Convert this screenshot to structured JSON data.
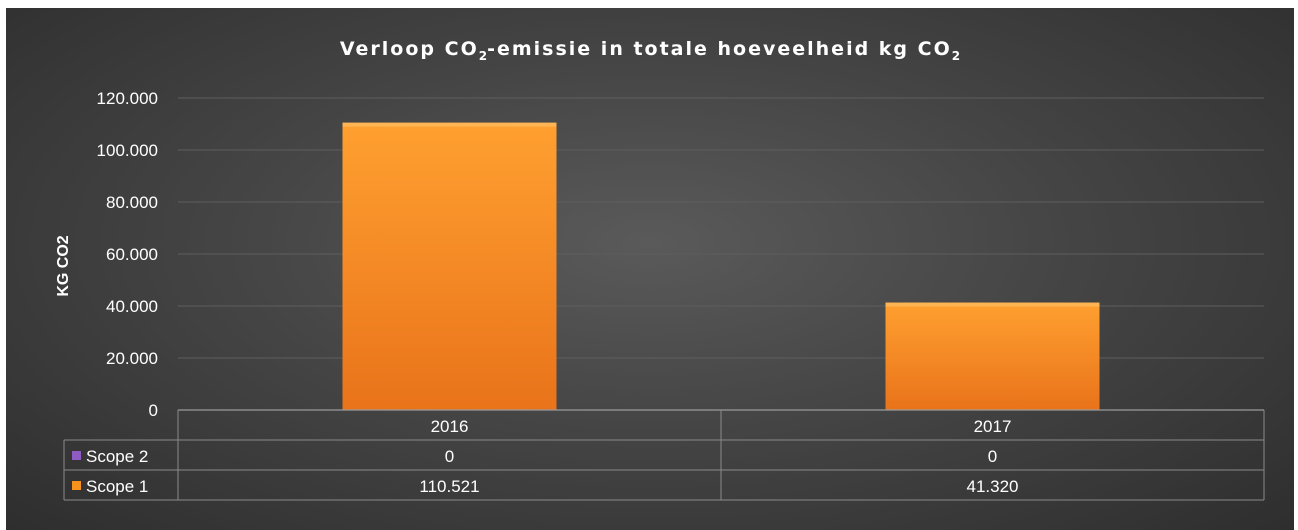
{
  "title": {
    "main": "Verloop CO",
    "sub1": "2",
    "mid": "-emissie in totale hoeveelheid kg CO",
    "sub2": "2"
  },
  "chart_data": {
    "type": "bar",
    "title": "Verloop CO2-emissie in totale hoeveelheid kg CO2",
    "xlabel": "",
    "ylabel": "KG CO2",
    "categories": [
      "2016",
      "2017"
    ],
    "series": [
      {
        "name": "Scope 2",
        "values": [
          0,
          0
        ],
        "value_labels": [
          "0",
          "0"
        ],
        "color": "#8e5bc2"
      },
      {
        "name": "Scope 1",
        "values": [
          110521,
          41320
        ],
        "value_labels": [
          "110.521",
          "41.320"
        ],
        "color": "#f8921f"
      }
    ],
    "ylim": [
      0,
      120000
    ],
    "yticks": [
      {
        "value": 0,
        "label": "0"
      },
      {
        "value": 20000,
        "label": "20.000"
      },
      {
        "value": 40000,
        "label": "40.000"
      },
      {
        "value": 60000,
        "label": "60.000"
      },
      {
        "value": 80000,
        "label": "80.000"
      },
      {
        "value": 100000,
        "label": "100.000"
      },
      {
        "value": 120000,
        "label": "120.000"
      }
    ],
    "stacked": true,
    "grid": true,
    "legend": "data-table"
  }
}
